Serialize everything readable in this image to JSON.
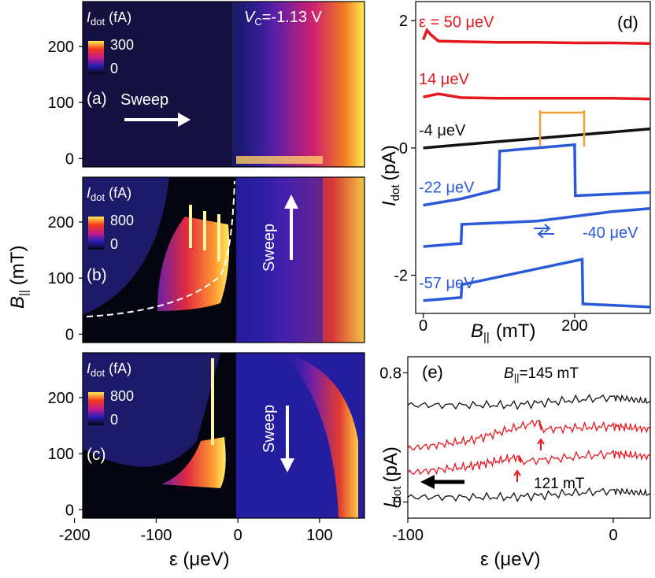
{
  "colors": {
    "heatmap_low": "#050510",
    "heatmap_mid1": "#2a1fb8",
    "heatmap_mid2": "#c81a8a",
    "heatmap_mid3": "#f03a1a",
    "heatmap_high": "#ffee55",
    "red_trace": "#e8171e",
    "blue_trace": "#2a5ad8",
    "black_trace": "#111111",
    "orange_marker": "#f0a030"
  },
  "chart_data": [
    {
      "panel": "(a)",
      "type": "heatmap",
      "colorbar_label": "I",
      "colorbar_label_sub": "dot",
      "colorbar_unit": "(fA)",
      "colorbar_max": "300",
      "colorbar_min": "0",
      "gate_label": "V",
      "gate_sub": "C",
      "gate_value": "=-1.13 V",
      "sweep_text": "Sweep",
      "sweep_direction": "right",
      "xlim": [
        -190,
        155
      ],
      "ylim": [
        -15,
        280
      ],
      "yticks": [
        "0",
        "100",
        "200"
      ]
    },
    {
      "panel": "(b)",
      "type": "heatmap",
      "colorbar_label": "I",
      "colorbar_label_sub": "dot",
      "colorbar_unit": "(fA)",
      "colorbar_max": "800",
      "colorbar_min": "0",
      "sweep_text": "Sweep",
      "sweep_direction": "up",
      "xlim": [
        -190,
        155
      ],
      "ylim": [
        -15,
        280
      ],
      "yticks": [
        "0",
        "100",
        "200"
      ]
    },
    {
      "panel": "(c)",
      "type": "heatmap",
      "colorbar_label": "I",
      "colorbar_label_sub": "dot",
      "colorbar_unit": "(fA)",
      "colorbar_max": "800",
      "colorbar_min": "0",
      "sweep_text": "Sweep",
      "sweep_direction": "down",
      "xlim": [
        -190,
        155
      ],
      "ylim": [
        -15,
        280
      ],
      "yticks": [
        "0",
        "100",
        "200"
      ],
      "xticks": [
        "-200",
        "-100",
        "0",
        "100"
      ],
      "xlabel": "ε (μeV)"
    },
    {
      "panel": "(d)",
      "type": "line",
      "xlim": [
        -10,
        300
      ],
      "ylim": [
        -2.6,
        2.3
      ],
      "xticks": [
        "0",
        "200"
      ],
      "yticks": [
        "2",
        "0",
        "-2"
      ],
      "xlabel_main": "B",
      "xlabel_sub": "||",
      "xlabel_unit": "(mT)",
      "ylabel_main": "I",
      "ylabel_sub": "dot",
      "ylabel_unit": "(pA)",
      "series": [
        {
          "name": "ε = 50 μeV",
          "color": "red",
          "x": [
            0,
            5,
            10,
            20,
            50,
            100,
            150,
            200,
            250,
            300
          ],
          "y": [
            1.7,
            1.85,
            1.78,
            1.68,
            1.67,
            1.66,
            1.66,
            1.65,
            1.65,
            1.64
          ]
        },
        {
          "name": "14 μeV",
          "color": "red",
          "x": [
            0,
            20,
            50,
            100,
            150,
            200,
            250,
            300
          ],
          "y": [
            0.8,
            0.85,
            0.79,
            0.78,
            0.78,
            0.78,
            0.78,
            0.77
          ]
        },
        {
          "name": "-4 μeV",
          "color": "black",
          "x": [
            0,
            50,
            100,
            150,
            200,
            250,
            300
          ],
          "y": [
            0.0,
            0.05,
            0.1,
            0.15,
            0.2,
            0.25,
            0.3
          ]
        },
        {
          "name": "-22 μeV",
          "color": "blue",
          "x": [
            0,
            50,
            100,
            101,
            200,
            201,
            300
          ],
          "y": [
            -0.9,
            -0.8,
            -0.65,
            -0.05,
            0.05,
            -0.75,
            -0.7
          ]
        },
        {
          "name": "-40 μeV",
          "color": "blue",
          "x": [
            0,
            50,
            51,
            150,
            250,
            300
          ],
          "y": [
            -1.55,
            -1.5,
            -1.2,
            -1.15,
            -1.0,
            -0.95
          ]
        },
        {
          "name": "-57 μeV",
          "color": "blue",
          "x": [
            0,
            50,
            51,
            150,
            210,
            211,
            300
          ],
          "y": [
            -2.4,
            -2.35,
            -2.15,
            -1.9,
            -1.75,
            -2.45,
            -2.5
          ]
        }
      ]
    },
    {
      "panel": "(e)",
      "type": "line",
      "xlim": [
        -100,
        18
      ],
      "ylim": [
        -0.1,
        0.9
      ],
      "xticks": [
        "-100",
        "0"
      ],
      "yticks": [
        "0.8",
        "0"
      ],
      "xlabel": "ε (μeV)",
      "ylabel_main": "I",
      "ylabel_sub": "dot",
      "ylabel_unit": "(pA)",
      "top_label_main": "B",
      "top_label_sub": "||",
      "top_label_value": "=145 mT",
      "bottom_label": "121 mT",
      "series": [
        {
          "color": "black",
          "x": [
            -100,
            -50,
            0,
            18
          ],
          "y": [
            0.6,
            0.6,
            0.65,
            0.62
          ]
        },
        {
          "color": "red",
          "x": [
            -100,
            -70,
            -36,
            -35,
            0,
            18
          ],
          "y": [
            0.33,
            0.38,
            0.5,
            0.45,
            0.47,
            0.45
          ]
        },
        {
          "color": "red",
          "x": [
            -100,
            -70,
            -46,
            -45,
            0,
            18
          ],
          "y": [
            0.18,
            0.22,
            0.28,
            0.25,
            0.3,
            0.28
          ]
        },
        {
          "color": "black",
          "x": [
            -100,
            -50,
            0,
            18
          ],
          "y": [
            0.03,
            0.03,
            0.07,
            0.05
          ]
        }
      ]
    }
  ],
  "shared": {
    "y_axis_label_main": "B",
    "y_axis_label_sub": "||",
    "y_axis_label_unit": "(mT)"
  }
}
